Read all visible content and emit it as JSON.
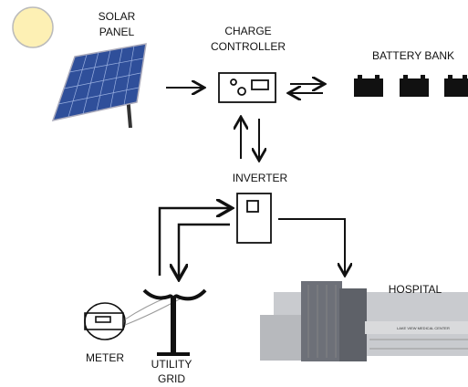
{
  "nodes": [
    {
      "id": "solar",
      "label": [
        "SOLAR",
        "PANEL"
      ]
    },
    {
      "id": "controller",
      "label": [
        "CHARGE",
        "CONTROLLER"
      ]
    },
    {
      "id": "battery",
      "label": [
        "BATTERY BANK"
      ]
    },
    {
      "id": "inverter",
      "label": [
        "INVERTER"
      ]
    },
    {
      "id": "hospital",
      "label": [
        "HOSPITAL"
      ],
      "sign": "LAKE VIEW MEDICAL CENTER"
    },
    {
      "id": "meter",
      "label": [
        "METER"
      ]
    },
    {
      "id": "grid",
      "label": [
        "UTILITY",
        "GRID"
      ]
    }
  ]
}
